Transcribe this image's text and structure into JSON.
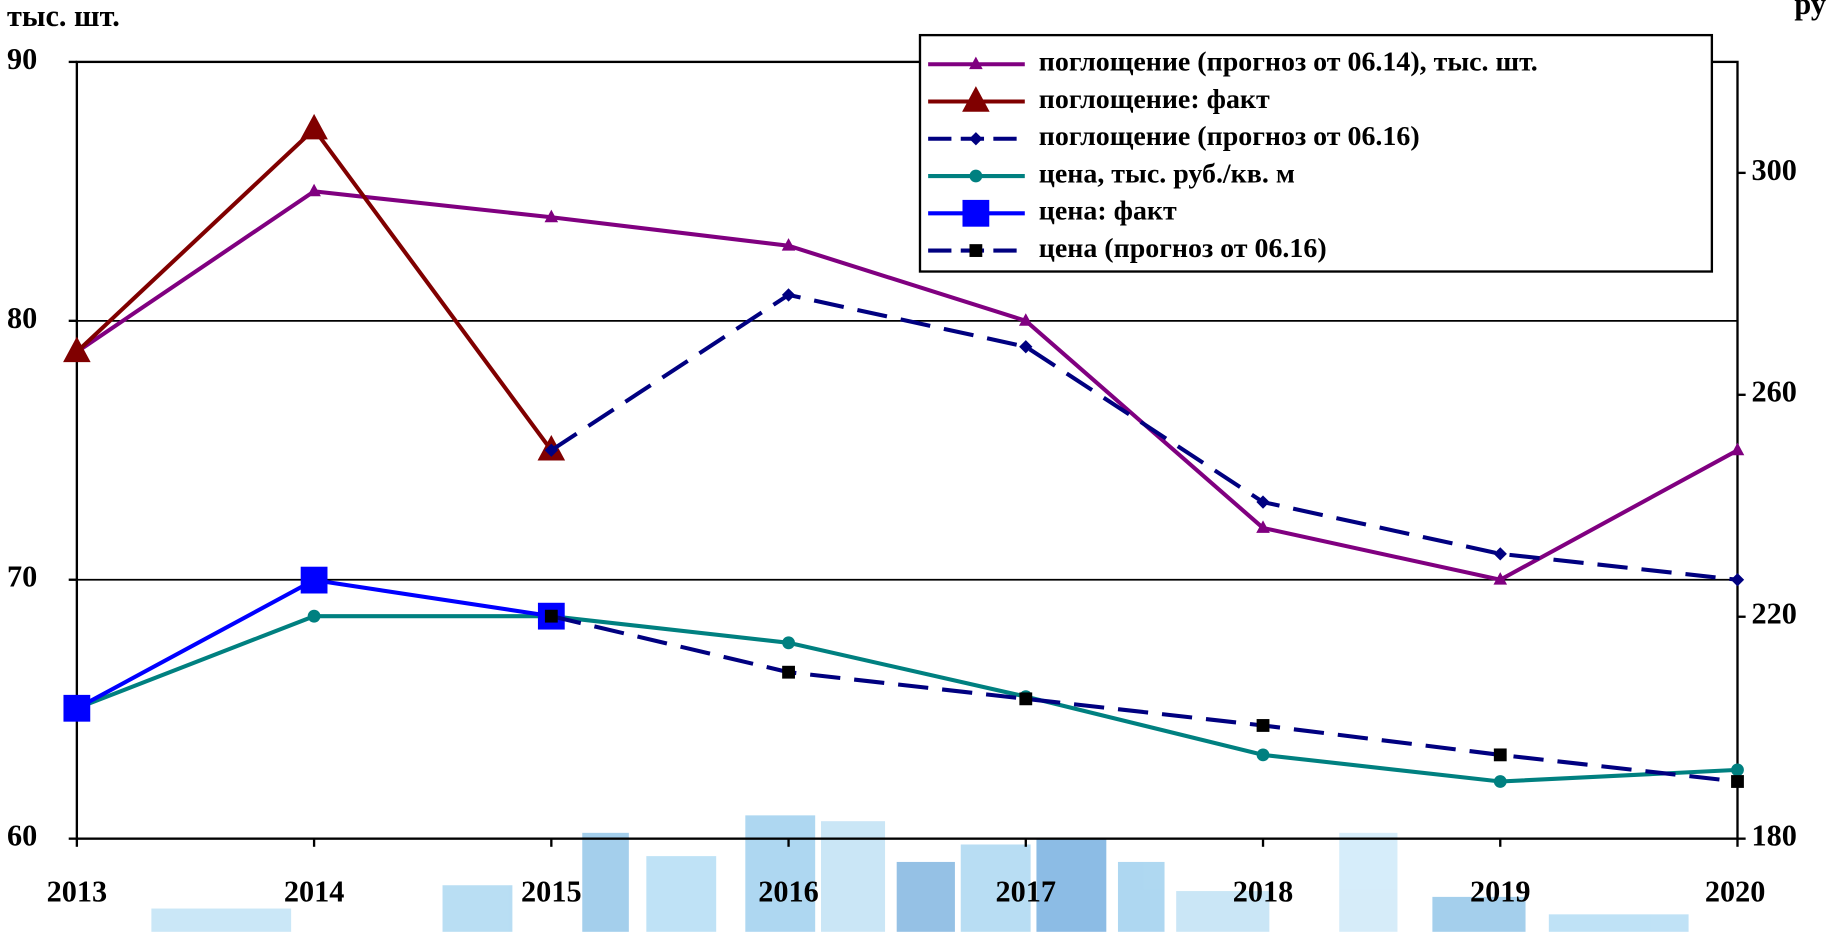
{
  "chart_data": {
    "type": "line",
    "y_label": "тыс. шт.",
    "y2_label": "ру",
    "x": [
      2013,
      2014,
      2015,
      2016,
      2017,
      2018,
      2019,
      2020
    ],
    "xlim": [
      2013,
      2020
    ],
    "xticks": [
      2013,
      2014,
      2015,
      2016,
      2017,
      2018,
      2019,
      2020
    ],
    "ylim": [
      60,
      90
    ],
    "yticks": [
      60,
      70,
      80,
      90
    ],
    "y2lim": [
      180,
      320
    ],
    "y2ticks": [
      180,
      220,
      260,
      300
    ],
    "grid": true,
    "legend": "top-right",
    "series": [
      {
        "name": "поглощение (прогноз от 06.14), тыс. шт.",
        "color": "#800080",
        "marker": "triangle",
        "marker_size": "small",
        "dash": false,
        "values": [
          78.8,
          85,
          84,
          82.9,
          80,
          72,
          70,
          75
        ]
      },
      {
        "name": "поглощение: факт",
        "color": "#800000",
        "marker": "triangle",
        "marker_size": "large",
        "dash": false,
        "values": [
          78.8,
          87.4,
          75,
          null,
          null,
          null,
          null,
          null
        ]
      },
      {
        "name": "поглощение (прогноз от 06.16)",
        "color": "#000080",
        "marker": "diamond",
        "marker_size": "small",
        "dash": true,
        "values": [
          null,
          null,
          75,
          81,
          79,
          73,
          71,
          70
        ]
      },
      {
        "name": "цена, тыс. руб./кв. м",
        "color": "#008080",
        "marker": "circle",
        "marker_size": "small",
        "dash": false,
        "axis": "y2",
        "values": [
          203.5,
          220.1,
          220.1,
          215.3,
          205.6,
          195.1,
          190.3,
          192.4
        ]
      },
      {
        "name": "цена: факт",
        "color": "#0000ff",
        "marker": "square",
        "marker_size": "large",
        "dash": false,
        "axis": "y2",
        "values": [
          203.5,
          226.6,
          220.1,
          null,
          null,
          null,
          null,
          null
        ]
      },
      {
        "name": "цена (прогноз от 06.16)",
        "color": "#000080",
        "marker_color": "#000000",
        "marker": "square",
        "marker_size": "small",
        "dash": true,
        "axis": "y2",
        "values": [
          null,
          null,
          220.1,
          210,
          205.2,
          200.4,
          195.1,
          190.3
        ]
      }
    ]
  }
}
